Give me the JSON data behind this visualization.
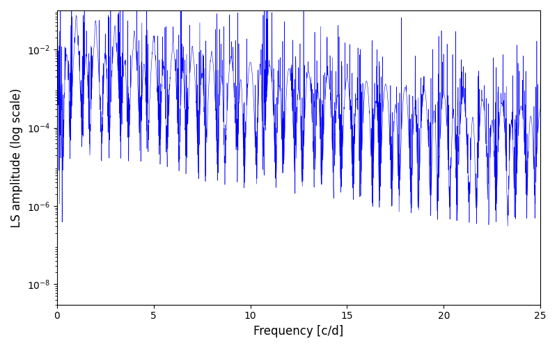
{
  "title": "",
  "xlabel": "Frequency [c/d]",
  "ylabel": "LS amplitude (log scale)",
  "xlim": [
    0,
    25
  ],
  "ylim": [
    3e-09,
    0.1
  ],
  "line_color": "#0000ff",
  "background_color": "#ffffff",
  "n_frequencies": 3000,
  "seed": 12345,
  "freq_max": 25.0,
  "linewidth": 0.4,
  "yticks": [
    1e-08,
    1e-06,
    0.0001,
    0.01
  ],
  "xticks": [
    0,
    5,
    10,
    15,
    20,
    25
  ]
}
